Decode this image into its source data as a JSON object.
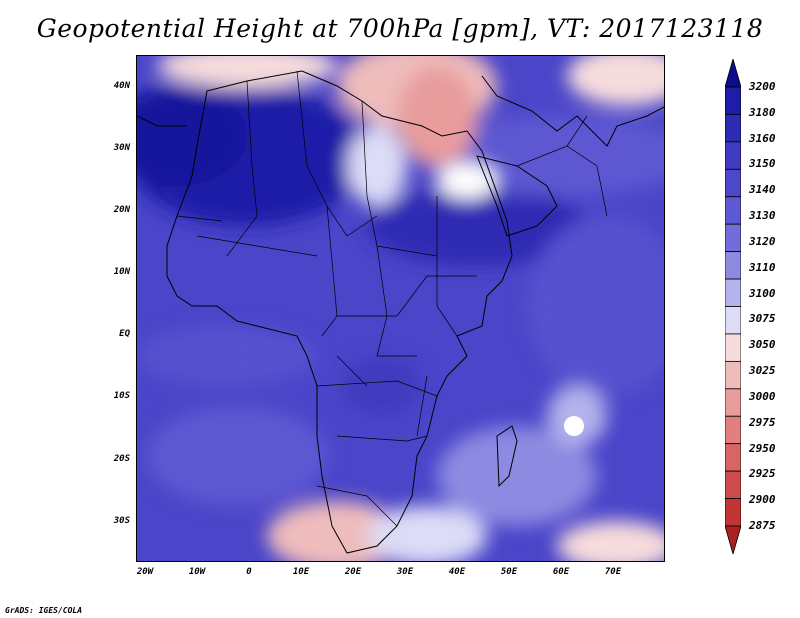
{
  "title": "Geopotential Height at 700hPa [gpm], VT: 2017123118",
  "credit": "GrADS: IGES/COLA",
  "map": {
    "region": "Africa and surroundings",
    "lat_labels": [
      "40N",
      "30N",
      "20N",
      "10N",
      "EQ",
      "10S",
      "20S",
      "30S"
    ],
    "lon_labels": [
      "20W",
      "10W",
      "0",
      "10E",
      "20E",
      "30E",
      "40E",
      "50E",
      "60E",
      "70E"
    ]
  },
  "legend": {
    "levels": [
      "3200",
      "3180",
      "3160",
      "3150",
      "3140",
      "3130",
      "3120",
      "3110",
      "3100",
      "3075",
      "3050",
      "3025",
      "3000",
      "2975",
      "2950",
      "2925",
      "2900",
      "2875"
    ],
    "colors": [
      "#0d0c8a",
      "#1f1ca8",
      "#2e2bb3",
      "#3f3abf",
      "#4c48c9",
      "#5d59d2",
      "#716ed9",
      "#8c8ae1",
      "#b4b3ec",
      "#dcdcf6",
      "#f6dcdc",
      "#efbcbc",
      "#e89c9c",
      "#e07f7f",
      "#d86464",
      "#ce4b4b",
      "#c23535",
      "#a82222"
    ]
  }
}
